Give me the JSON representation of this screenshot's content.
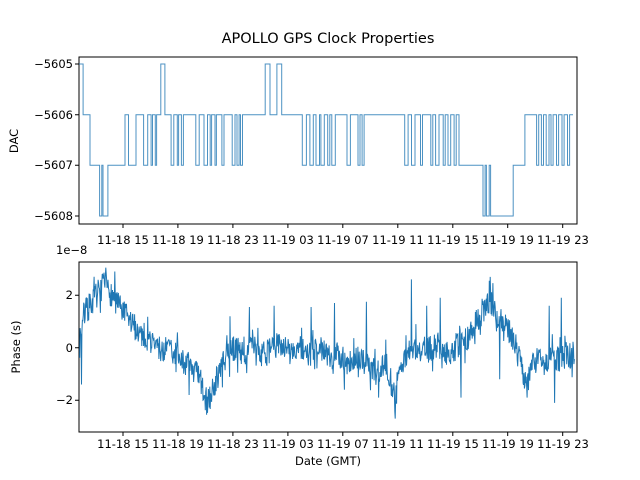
{
  "figure": {
    "title": "APOLLO GPS Clock Properties",
    "background": "#ffffff",
    "line_color": "#1f77b4",
    "axis_color": "#000000"
  },
  "x_axis": {
    "label": "Date (GMT)",
    "tick_labels": [
      "11-18 15",
      "11-18 19",
      "11-18 23",
      "11-19 03",
      "11-19 07",
      "11-19 11",
      "11-19 15",
      "11-19 19",
      "11-19 23"
    ],
    "tick_hours": [
      3.2,
      7.2,
      11.2,
      15.2,
      19.2,
      23.2,
      27.2,
      31.2,
      35.2
    ],
    "range_hours": [
      0,
      36.24
    ]
  },
  "chart_data": [
    {
      "type": "line",
      "name": "dac",
      "title": "APOLLO GPS Clock Properties",
      "ylabel": "DAC",
      "yticks": [
        -5605,
        -5606,
        -5607,
        -5608
      ],
      "ytick_labels": [
        "−5605",
        "−5606",
        "−5607",
        "−5608"
      ],
      "ylim": [
        -5608.16,
        -5604.86
      ],
      "style": "steps-post",
      "steps": [
        [
          0.0,
          -5605
        ],
        [
          0.3,
          -5606
        ],
        [
          0.8,
          -5607
        ],
        [
          1.5,
          -5608
        ],
        [
          1.66,
          -5607
        ],
        [
          1.75,
          -5608
        ],
        [
          2.1,
          -5607
        ],
        [
          3.35,
          -5606
        ],
        [
          3.6,
          -5607
        ],
        [
          4.15,
          -5606
        ],
        [
          4.7,
          -5607
        ],
        [
          5.0,
          -5606
        ],
        [
          5.25,
          -5607
        ],
        [
          5.35,
          -5606
        ],
        [
          5.55,
          -5607
        ],
        [
          5.65,
          -5606
        ],
        [
          5.95,
          -5605
        ],
        [
          6.25,
          -5606
        ],
        [
          6.7,
          -5607
        ],
        [
          6.9,
          -5606
        ],
        [
          7.15,
          -5607
        ],
        [
          7.25,
          -5606
        ],
        [
          7.45,
          -5607
        ],
        [
          7.6,
          -5606
        ],
        [
          8.5,
          -5607
        ],
        [
          8.75,
          -5606
        ],
        [
          9.1,
          -5607
        ],
        [
          9.35,
          -5606
        ],
        [
          9.55,
          -5607
        ],
        [
          9.65,
          -5606
        ],
        [
          9.9,
          -5607
        ],
        [
          10.0,
          -5606
        ],
        [
          10.4,
          -5607
        ],
        [
          10.55,
          -5606
        ],
        [
          11.15,
          -5607
        ],
        [
          11.35,
          -5606
        ],
        [
          11.5,
          -5607
        ],
        [
          11.65,
          -5606
        ],
        [
          11.75,
          -5607
        ],
        [
          11.9,
          -5606
        ],
        [
          13.55,
          -5605
        ],
        [
          13.9,
          -5606
        ],
        [
          14.4,
          -5605
        ],
        [
          14.75,
          -5606
        ],
        [
          16.25,
          -5607
        ],
        [
          16.55,
          -5606
        ],
        [
          16.8,
          -5607
        ],
        [
          17.05,
          -5606
        ],
        [
          17.25,
          -5607
        ],
        [
          17.5,
          -5606
        ],
        [
          17.6,
          -5607
        ],
        [
          17.85,
          -5606
        ],
        [
          18.1,
          -5607
        ],
        [
          18.25,
          -5606
        ],
        [
          18.4,
          -5607
        ],
        [
          18.65,
          -5606
        ],
        [
          19.5,
          -5607
        ],
        [
          19.75,
          -5606
        ],
        [
          20.3,
          -5607
        ],
        [
          20.45,
          -5606
        ],
        [
          20.6,
          -5607
        ],
        [
          20.75,
          -5606
        ],
        [
          23.7,
          -5607
        ],
        [
          23.95,
          -5606
        ],
        [
          24.2,
          -5607
        ],
        [
          24.45,
          -5606
        ],
        [
          24.85,
          -5607
        ],
        [
          25.0,
          -5606
        ],
        [
          25.6,
          -5607
        ],
        [
          25.75,
          -5606
        ],
        [
          25.95,
          -5607
        ],
        [
          26.2,
          -5606
        ],
        [
          26.5,
          -5607
        ],
        [
          26.65,
          -5606
        ],
        [
          26.85,
          -5607
        ],
        [
          27.05,
          -5606
        ],
        [
          27.3,
          -5607
        ],
        [
          27.45,
          -5606
        ],
        [
          27.65,
          -5607
        ],
        [
          29.4,
          -5608
        ],
        [
          29.55,
          -5607
        ],
        [
          29.65,
          -5608
        ],
        [
          29.85,
          -5607
        ],
        [
          29.95,
          -5608
        ],
        [
          31.6,
          -5607
        ],
        [
          32.45,
          -5606
        ],
        [
          33.3,
          -5607
        ],
        [
          33.45,
          -5606
        ],
        [
          33.65,
          -5607
        ],
        [
          33.8,
          -5606
        ],
        [
          34.0,
          -5607
        ],
        [
          34.2,
          -5606
        ],
        [
          34.35,
          -5607
        ],
        [
          34.5,
          -5606
        ],
        [
          34.75,
          -5607
        ],
        [
          34.9,
          -5606
        ],
        [
          35.15,
          -5607
        ],
        [
          35.3,
          -5606
        ],
        [
          35.55,
          -5607
        ],
        [
          35.7,
          -5606
        ],
        [
          35.95,
          -5606
        ]
      ]
    },
    {
      "type": "line",
      "name": "phase",
      "ylabel": "Phase (s)",
      "offset_label": "1e−8",
      "unit_multiplier": 1e-08,
      "yticks": [
        2,
        0,
        -2
      ],
      "ytick_labels": [
        "2",
        "0",
        "−2"
      ],
      "ylim": [
        -3.21,
        3.26
      ],
      "trend": [
        [
          0.0,
          0.3
        ],
        [
          0.3,
          1.2
        ],
        [
          0.8,
          1.6
        ],
        [
          1.5,
          2.2
        ],
        [
          1.9,
          2.4
        ],
        [
          2.4,
          2.0
        ],
        [
          3.0,
          1.5
        ],
        [
          3.7,
          1.0
        ],
        [
          4.4,
          0.6
        ],
        [
          5.1,
          0.3
        ],
        [
          5.8,
          0.0
        ],
        [
          6.2,
          -0.2
        ],
        [
          6.4,
          0.1
        ],
        [
          7.3,
          -0.4
        ],
        [
          7.9,
          -0.6
        ],
        [
          8.6,
          -1.0
        ],
        [
          9.0,
          -1.6
        ],
        [
          9.3,
          -2.2
        ],
        [
          9.6,
          -1.8
        ],
        [
          10.2,
          -0.9
        ],
        [
          10.8,
          -0.3
        ],
        [
          11.3,
          0.0
        ],
        [
          12.0,
          -0.2
        ],
        [
          12.6,
          0.1
        ],
        [
          13.3,
          -0.3
        ],
        [
          14.0,
          -0.1
        ],
        [
          14.7,
          0.2
        ],
        [
          15.4,
          -0.2
        ],
        [
          16.1,
          0.0
        ],
        [
          16.8,
          -0.3
        ],
        [
          17.5,
          0.1
        ],
        [
          18.2,
          -0.4
        ],
        [
          18.9,
          -0.2
        ],
        [
          19.6,
          -0.6
        ],
        [
          20.3,
          -0.4
        ],
        [
          21.0,
          -0.7
        ],
        [
          21.7,
          -0.9
        ],
        [
          22.4,
          -0.6
        ],
        [
          23.0,
          -2.0
        ],
        [
          23.3,
          -0.8
        ],
        [
          24.0,
          -0.2
        ],
        [
          24.7,
          0.0
        ],
        [
          25.4,
          -0.1
        ],
        [
          26.1,
          0.1
        ],
        [
          26.8,
          -0.2
        ],
        [
          27.5,
          0.0
        ],
        [
          28.2,
          0.3
        ],
        [
          28.9,
          1.0
        ],
        [
          29.5,
          1.5
        ],
        [
          29.9,
          1.8
        ],
        [
          30.3,
          1.3
        ],
        [
          30.8,
          1.0
        ],
        [
          31.3,
          0.6
        ],
        [
          31.8,
          0.0
        ],
        [
          32.3,
          -0.9
        ],
        [
          32.6,
          -1.3
        ],
        [
          33.0,
          -0.6
        ],
        [
          33.5,
          -0.4
        ],
        [
          34.0,
          -0.7
        ],
        [
          34.5,
          -0.3
        ],
        [
          35.0,
          -0.5
        ],
        [
          35.5,
          -0.2
        ],
        [
          36.05,
          -0.4
        ]
      ],
      "spikes": [
        [
          0.18,
          -1.4
        ],
        [
          0.5,
          1.9
        ],
        [
          1.1,
          2.7
        ],
        [
          1.95,
          3.05
        ],
        [
          2.6,
          2.9
        ],
        [
          8.0,
          -1.8
        ],
        [
          9.3,
          -2.55
        ],
        [
          11.0,
          1.2
        ],
        [
          12.4,
          1.55
        ],
        [
          14.2,
          1.6
        ],
        [
          16.9,
          1.55
        ],
        [
          18.6,
          1.7
        ],
        [
          19.3,
          -1.6
        ],
        [
          20.9,
          1.75
        ],
        [
          21.8,
          -1.9
        ],
        [
          23.0,
          -2.7
        ],
        [
          24.2,
          2.6
        ],
        [
          25.3,
          1.6
        ],
        [
          26.3,
          1.9
        ],
        [
          27.8,
          -1.9
        ],
        [
          29.85,
          2.55
        ],
        [
          30.6,
          -1.2
        ],
        [
          32.6,
          -1.9
        ],
        [
          34.2,
          1.6
        ],
        [
          34.6,
          -2.1
        ],
        [
          35.1,
          1.9
        ]
      ],
      "noise_amplitude": 0.5,
      "n_points": 1100,
      "seed": 7
    }
  ]
}
